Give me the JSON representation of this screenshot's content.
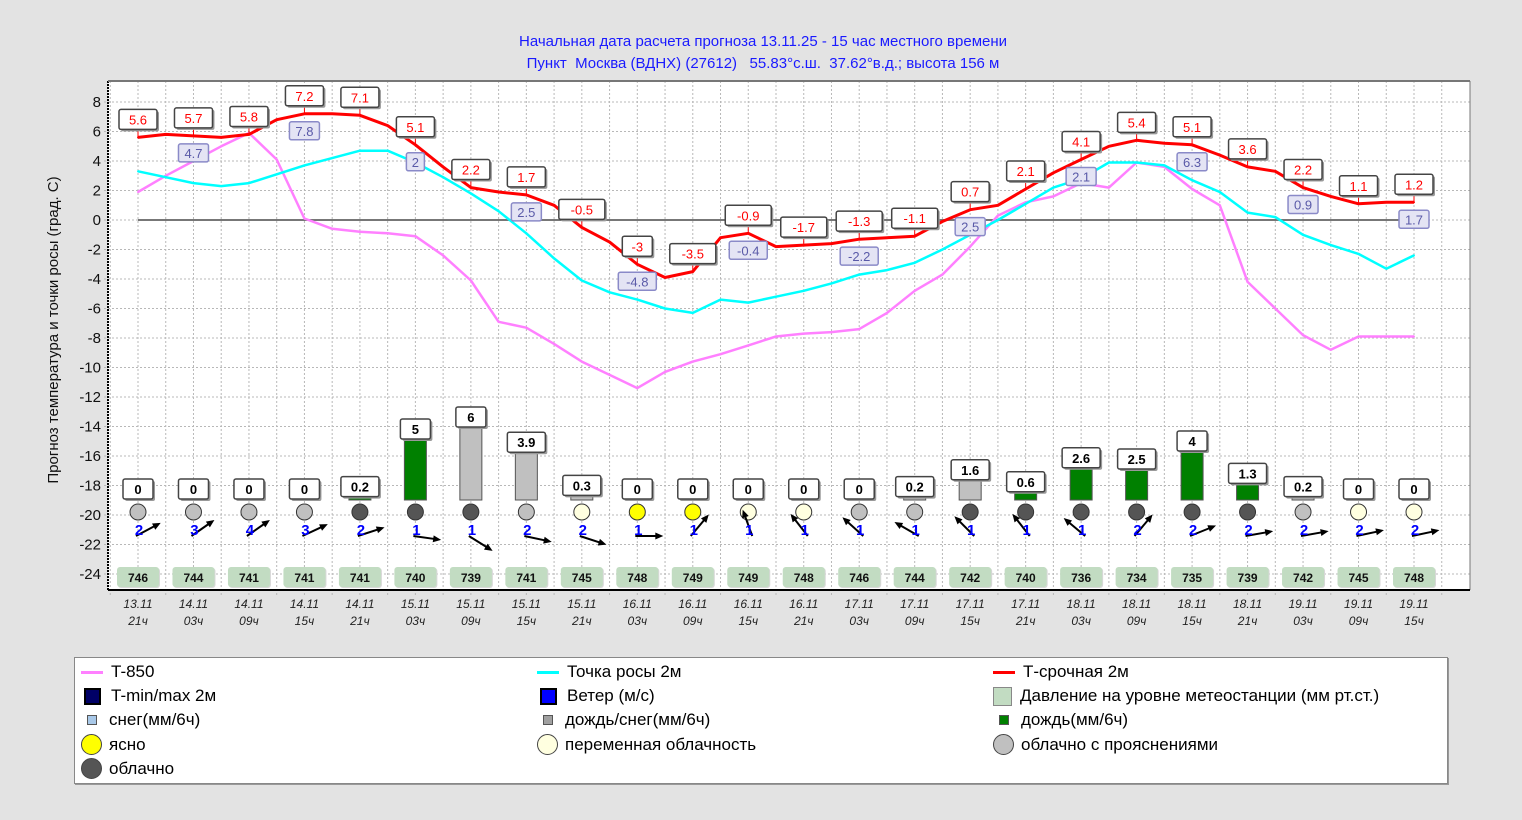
{
  "chart_data": {
    "type": "line",
    "title": "Начальная дата расчета прогноза 13.11.25 - 15 час местного времени",
    "subtitle": "Пункт  Москва (ВДНХ) (27612)   55.83°с.ш.  37.62°в.д.; высота 156 м",
    "ylabel": "Прогноз температура и точки росы (град. С)",
    "xlabel": "",
    "ylim": [
      -25.5,
      9.4
    ],
    "yticks": [
      "8",
      "6",
      "4",
      "2",
      "0",
      "-2",
      "-4",
      "-6",
      "-8",
      "-10",
      "-12",
      "-14",
      "-16",
      "-18",
      "-20",
      "-22",
      "-24"
    ],
    "grid": true,
    "x_labels": [
      {
        "date": "13.11",
        "hour": "21ч"
      },
      {
        "date": "14.11",
        "hour": "03ч"
      },
      {
        "date": "14.11",
        "hour": "09ч"
      },
      {
        "date": "14.11",
        "hour": "15ч"
      },
      {
        "date": "14.11",
        "hour": "21ч"
      },
      {
        "date": "15.11",
        "hour": "03ч"
      },
      {
        "date": "15.11",
        "hour": "09ч"
      },
      {
        "date": "15.11",
        "hour": "15ч"
      },
      {
        "date": "15.11",
        "hour": "21ч"
      },
      {
        "date": "16.11",
        "hour": "03ч"
      },
      {
        "date": "16.11",
        "hour": "09ч"
      },
      {
        "date": "16.11",
        "hour": "15ч"
      },
      {
        "date": "16.11",
        "hour": "21ч"
      },
      {
        "date": "17.11",
        "hour": "03ч"
      },
      {
        "date": "17.11",
        "hour": "09ч"
      },
      {
        "date": "17.11",
        "hour": "15ч"
      },
      {
        "date": "17.11",
        "hour": "21ч"
      },
      {
        "date": "18.11",
        "hour": "03ч"
      },
      {
        "date": "18.11",
        "hour": "09ч"
      },
      {
        "date": "18.11",
        "hour": "15ч"
      },
      {
        "date": "18.11",
        "hour": "21ч"
      },
      {
        "date": "19.11",
        "hour": "03ч"
      },
      {
        "date": "19.11",
        "hour": "09ч"
      },
      {
        "date": "19.11",
        "hour": "15ч"
      }
    ],
    "series": [
      {
        "name": "T-850",
        "key": "t850",
        "color": "#ff80ff",
        "step_hours": 3,
        "values": [
          1.9,
          3.0,
          4.0,
          5.0,
          5.9,
          4.1,
          0.1,
          -0.6,
          -0.8,
          -0.9,
          -1.1,
          -2.4,
          -4.1,
          -6.9,
          -7.3,
          -8.4,
          -9.6,
          -10.5,
          -11.4,
          -10.3,
          -9.6,
          -9.1,
          -8.5,
          -7.9,
          -7.7,
          -7.6,
          -7.4,
          -6.3,
          -4.8,
          -3.7,
          -1.8,
          0.3,
          1.2,
          1.6,
          2.5,
          2.2,
          3.9,
          3.6,
          2.1,
          1.0,
          -4.2,
          -6.0,
          -7.8,
          -8.8,
          -7.9,
          -7.9,
          -7.9
        ]
      },
      {
        "name": "Точка росы 2м",
        "key": "dew",
        "color": "#00ffff",
        "step_hours": 3,
        "values": [
          3.3,
          2.9,
          2.5,
          2.3,
          2.5,
          3.1,
          3.7,
          4.2,
          4.7,
          4.7,
          3.9,
          2.9,
          1.8,
          0.6,
          -0.9,
          -2.6,
          -4.1,
          -4.9,
          -5.4,
          -6.0,
          -6.3,
          -5.4,
          -5.6,
          -5.2,
          -4.8,
          -4.3,
          -3.7,
          -3.4,
          -2.9,
          -2.0,
          -1.0,
          0.0,
          1.1,
          2.2,
          2.8,
          3.9,
          3.9,
          3.7,
          2.7,
          1.9,
          0.5,
          0.2,
          -1.0,
          -1.7,
          -2.3,
          -3.3,
          -2.4
        ]
      },
      {
        "name": "Т-срочная 2м",
        "key": "temp",
        "color": "#ff0000",
        "step_hours": 3,
        "values": [
          5.6,
          5.8,
          5.7,
          5.6,
          5.8,
          6.8,
          7.2,
          7.2,
          7.1,
          6.4,
          5.1,
          3.6,
          2.2,
          1.9,
          1.7,
          1.0,
          -0.5,
          -1.5,
          -3.0,
          -3.9,
          -3.5,
          -1.2,
          -0.9,
          -1.8,
          -1.7,
          -1.6,
          -1.3,
          -1.2,
          -1.1,
          -0.1,
          0.7,
          1.0,
          2.1,
          3.2,
          4.1,
          5.0,
          5.4,
          5.2,
          5.1,
          4.4,
          3.6,
          3.3,
          2.2,
          1.6,
          1.1,
          1.2,
          1.2
        ]
      }
    ],
    "temp_labels": [
      "5.6",
      "5.7",
      "5.8",
      "7.2",
      "7.1",
      "5.1",
      "2.2",
      "1.7",
      "-0.5",
      "-3",
      "-3.5",
      "-0.9",
      "-1.7",
      "-1.3",
      "-1.1",
      "0.7",
      "2.1",
      "4.1",
      "5.4",
      "5.1",
      "3.6",
      "2.2",
      "1.1",
      "1.2"
    ],
    "minmax_labels": [
      {
        "index": 1,
        "value": 4.7,
        "label": "4.7"
      },
      {
        "index": 3,
        "value": 7.8,
        "label": "7.8"
      },
      {
        "index": 5,
        "value": 2,
        "label": "2"
      },
      {
        "index": 7,
        "value": 2.5,
        "label": "2.5"
      },
      {
        "index": 9,
        "value": -4.8,
        "label": "-4.8"
      },
      {
        "index": 11,
        "value": -0.4,
        "label": "-0.4"
      },
      {
        "index": 13,
        "value": -2.2,
        "label": "-2.2"
      },
      {
        "index": 15,
        "value": 2.5,
        "label": "2.5"
      },
      {
        "index": 17,
        "value": 2.1,
        "label": "2.1"
      },
      {
        "index": 19,
        "value": 6.3,
        "label": "6.3"
      },
      {
        "index": 21,
        "value": 0.9,
        "label": "0.9"
      },
      {
        "index": 23,
        "value": 1.7,
        "label": "1.7"
      }
    ],
    "precip": [
      {
        "value": 0,
        "label": "0",
        "type": "none"
      },
      {
        "value": 0,
        "label": "0",
        "type": "none"
      },
      {
        "value": 0,
        "label": "0",
        "type": "none"
      },
      {
        "value": 0,
        "label": "0",
        "type": "none"
      },
      {
        "value": 0.2,
        "label": "0.2",
        "type": "rain"
      },
      {
        "value": 5,
        "label": "5",
        "type": "rain"
      },
      {
        "value": 6,
        "label": "6",
        "type": "mixed"
      },
      {
        "value": 3.9,
        "label": "3.9",
        "type": "mixed"
      },
      {
        "value": 0.3,
        "label": "0.3",
        "type": "mixed"
      },
      {
        "value": 0,
        "label": "0",
        "type": "none"
      },
      {
        "value": 0,
        "label": "0",
        "type": "none"
      },
      {
        "value": 0,
        "label": "0",
        "type": "none"
      },
      {
        "value": 0,
        "label": "0",
        "type": "none"
      },
      {
        "value": 0,
        "label": "0",
        "type": "none"
      },
      {
        "value": 0.2,
        "label": "0.2",
        "type": "mixed"
      },
      {
        "value": 1.6,
        "label": "1.6",
        "type": "mixed"
      },
      {
        "value": 0.6,
        "label": "0.6",
        "type": "rain"
      },
      {
        "value": 2.6,
        "label": "2.6",
        "type": "rain"
      },
      {
        "value": 2.5,
        "label": "2.5",
        "type": "rain"
      },
      {
        "value": 4,
        "label": "4",
        "type": "rain"
      },
      {
        "value": 1.3,
        "label": "1.3",
        "type": "rain"
      },
      {
        "value": 0.2,
        "label": "0.2",
        "type": "mixed"
      },
      {
        "value": 0,
        "label": "0",
        "type": "none"
      },
      {
        "value": 0,
        "label": "0",
        "type": "none"
      }
    ],
    "clouds": [
      "partly",
      "partly",
      "partly",
      "partly",
      "overcast",
      "overcast",
      "overcast",
      "partly",
      "variable",
      "clear",
      "clear",
      "variable",
      "variable",
      "partly",
      "partly",
      "overcast",
      "overcast",
      "overcast",
      "overcast",
      "overcast",
      "overcast",
      "partly",
      "variable",
      "variable"
    ],
    "wind": [
      {
        "speed": "2",
        "dir": -28
      },
      {
        "speed": "3",
        "dir": -35
      },
      {
        "speed": "4",
        "dir": -35
      },
      {
        "speed": "3",
        "dir": -25
      },
      {
        "speed": "2",
        "dir": -18
      },
      {
        "speed": "1",
        "dir": 8
      },
      {
        "speed": "1",
        "dir": 32
      },
      {
        "speed": "2",
        "dir": 12
      },
      {
        "speed": "2",
        "dir": 18
      },
      {
        "speed": "1",
        "dir": 0
      },
      {
        "speed": "1",
        "dir": -50
      },
      {
        "speed": "1",
        "dir": -110
      },
      {
        "speed": "1",
        "dir": -128
      },
      {
        "speed": "1",
        "dir": -138
      },
      {
        "speed": "1",
        "dir": -150
      },
      {
        "speed": "1",
        "dir": -135
      },
      {
        "speed": "1",
        "dir": -128
      },
      {
        "speed": "1",
        "dir": -140
      },
      {
        "speed": "2",
        "dir": -50
      },
      {
        "speed": "2",
        "dir": -22
      },
      {
        "speed": "2",
        "dir": -10
      },
      {
        "speed": "2",
        "dir": -10
      },
      {
        "speed": "2",
        "dir": -12
      },
      {
        "speed": "2",
        "dir": -12
      }
    ],
    "pressure": [
      "746",
      "744",
      "741",
      "741",
      "741",
      "740",
      "739",
      "741",
      "745",
      "748",
      "749",
      "749",
      "748",
      "746",
      "744",
      "742",
      "740",
      "736",
      "734",
      "735",
      "739",
      "742",
      "745",
      "748"
    ]
  },
  "colors": {
    "t850": "#ff80ff",
    "dew": "#00ffff",
    "temp": "#ff0000",
    "minmax": "#000066",
    "wind": "#0000ff",
    "pressure": "#c2dcc2",
    "snow": "#a8c8e8",
    "mixed": "#c0c0c0",
    "rain": "#008000",
    "clear": "#ffff00",
    "variable": "#ffffe0",
    "partly": "#c0c0c0",
    "overcast": "#555555"
  },
  "legend": [
    {
      "label": "T-850",
      "swatch": "line",
      "color": "#ff80ff"
    },
    {
      "label": "Точка росы 2м",
      "swatch": "line",
      "color": "#00ffff"
    },
    {
      "label": "Т-срочная 2м",
      "swatch": "line",
      "color": "#ff0000"
    },
    {
      "label": "T-min/max 2м",
      "swatch": "box",
      "color": "#000066"
    },
    {
      "label": "Ветер (м/с)",
      "swatch": "box",
      "color": "#0000ff"
    },
    {
      "label": "Давление на уровне метеостанции (мм рт.ст.)",
      "swatch": "press",
      "color": "#c2dcc2"
    },
    {
      "label": "снег(мм/6ч)",
      "swatch": "small",
      "color": "#a8c8e8"
    },
    {
      "label": "дождь/снег(мм/6ч)",
      "swatch": "small",
      "color": "#a0a0a0"
    },
    {
      "label": "дождь(мм/6ч)",
      "swatch": "small",
      "color": "#008000"
    },
    {
      "label": "ясно",
      "swatch": "circle",
      "color": "#ffff00"
    },
    {
      "label": "переменная облачность",
      "swatch": "circle",
      "color": "#ffffe0"
    },
    {
      "label": "облачно с прояснениями",
      "swatch": "circle",
      "color": "#c0c0c0"
    },
    {
      "label": "облачно",
      "swatch": "circle",
      "color": "#555555"
    }
  ]
}
